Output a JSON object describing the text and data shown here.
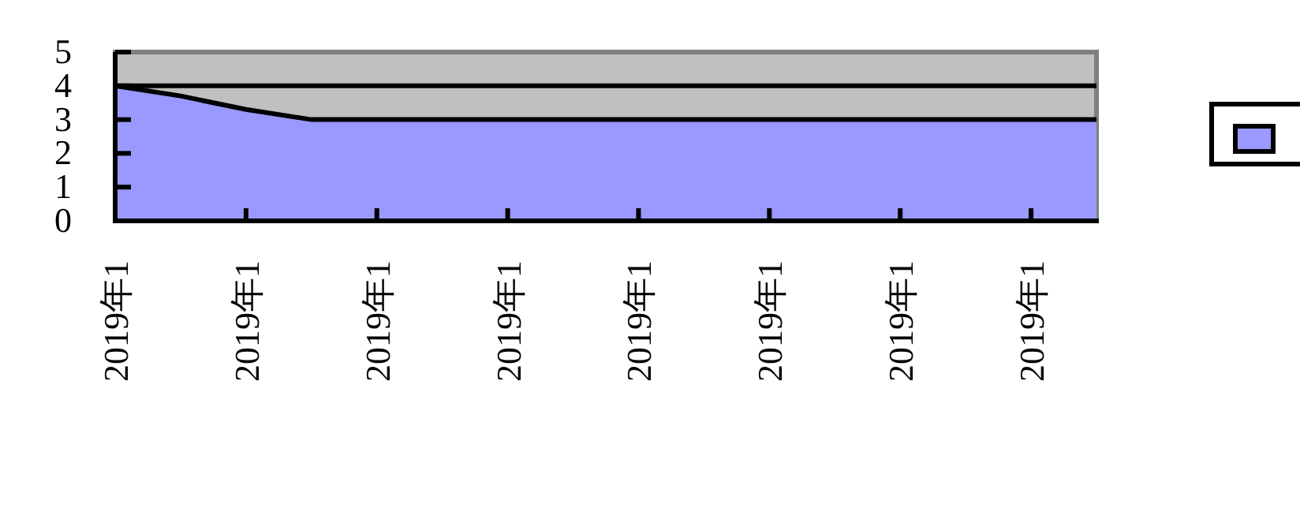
{
  "chart_data": {
    "type": "area",
    "categories": [
      "2019年1",
      null,
      "2019年1",
      null,
      "2019年1",
      null,
      "2019年1",
      null,
      "2019年1",
      null,
      "2019年1",
      null,
      "2019年1",
      null,
      "2019年1",
      null
    ],
    "series": [
      {
        "color": "#9999ff",
        "values": [
          4,
          3.7,
          3.3,
          3,
          3,
          3,
          3,
          3,
          3,
          3,
          3,
          3,
          3,
          3,
          3,
          3
        ]
      },
      {
        "type": "line",
        "color": "#000000",
        "values": [
          4,
          4,
          4,
          4,
          4,
          4,
          4,
          4,
          4,
          4,
          4,
          4,
          4,
          4,
          4,
          4
        ]
      }
    ],
    "ylim": [
      0,
      5
    ],
    "yticks": [
      0,
      1,
      2,
      3,
      4,
      5
    ],
    "grid": false
  }
}
